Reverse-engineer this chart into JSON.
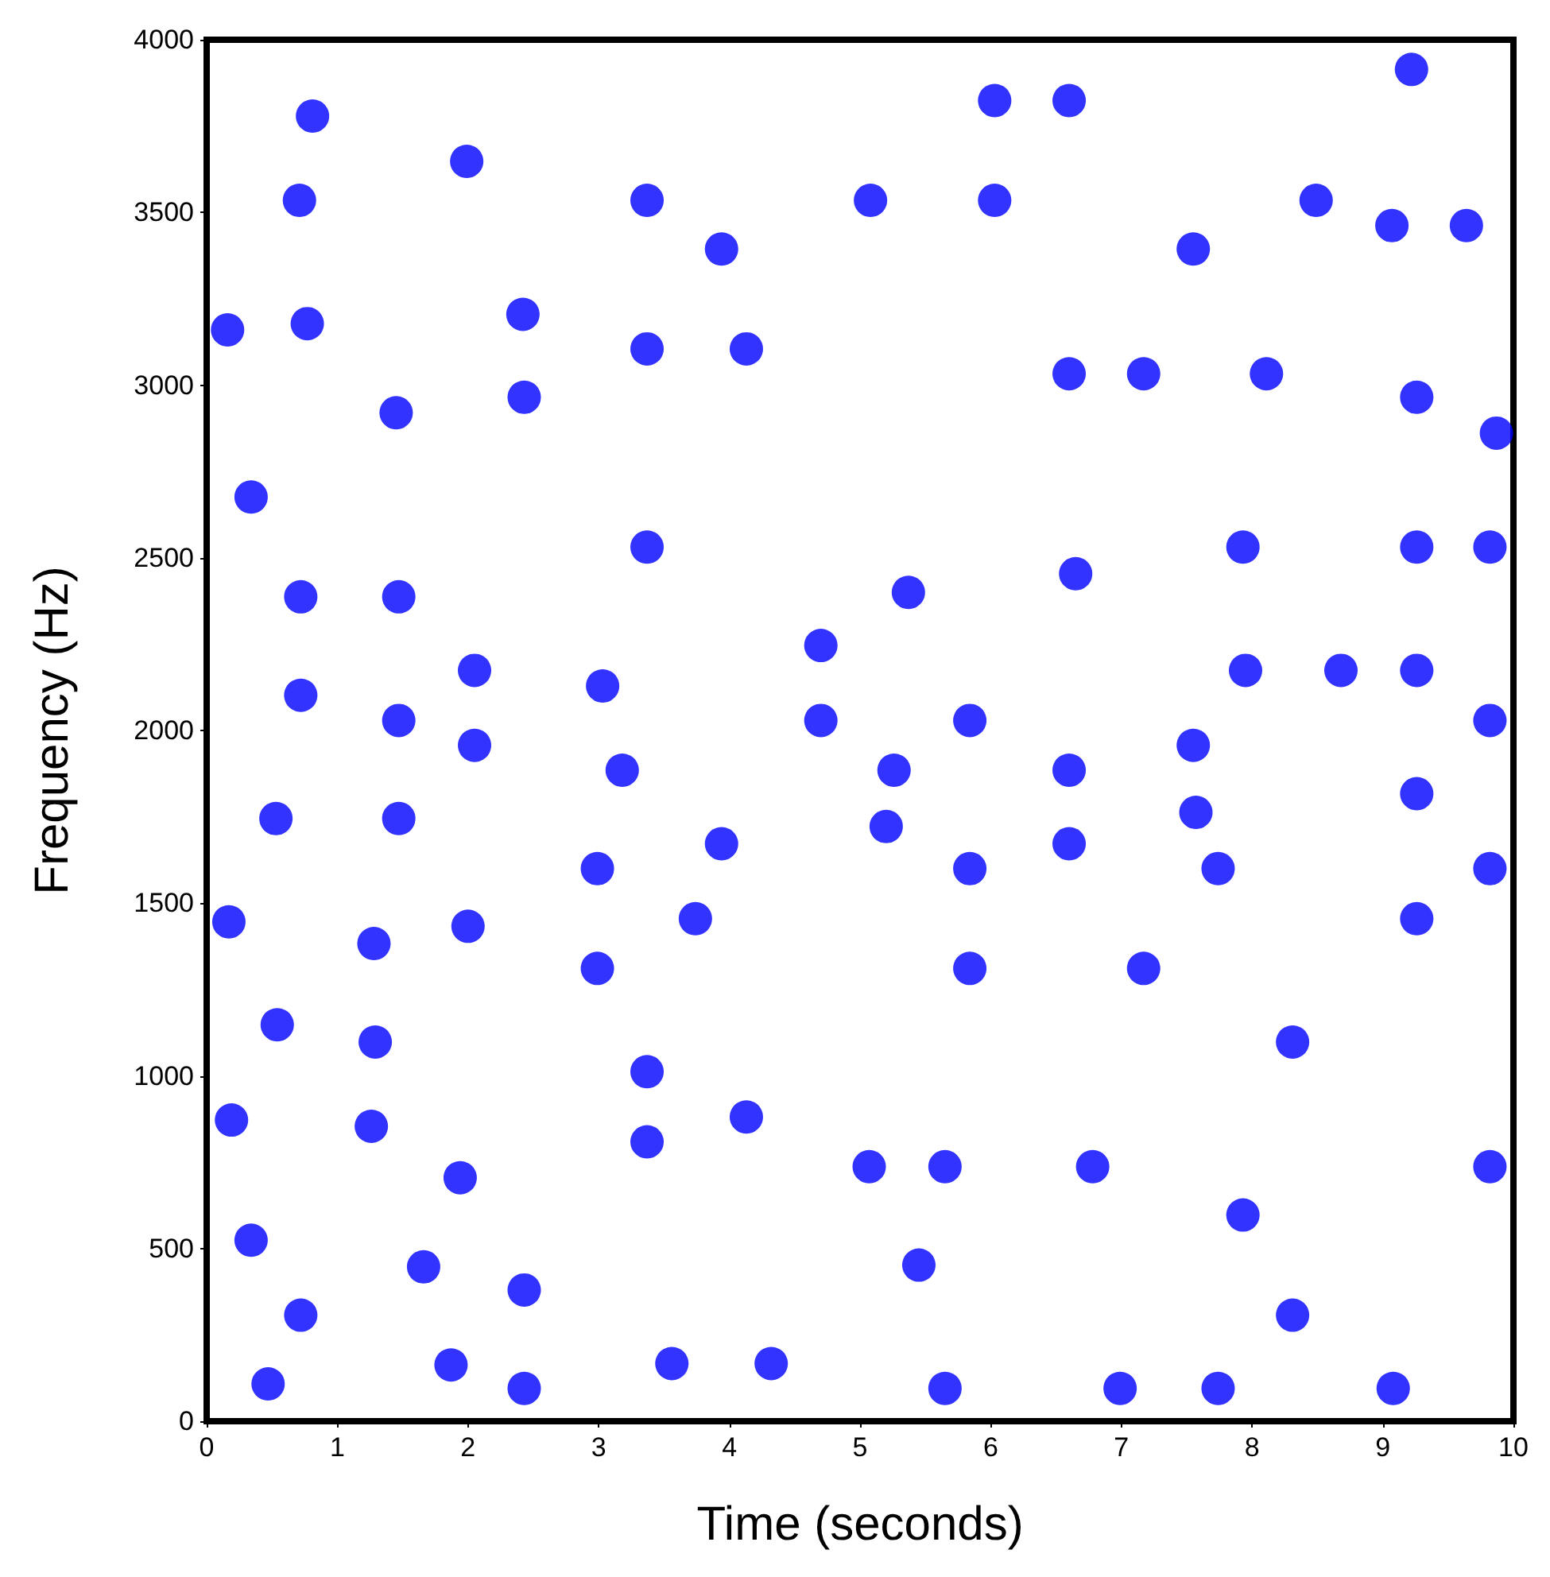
{
  "chart_data": {
    "type": "scatter",
    "xlabel": "Time (seconds)",
    "ylabel": "Frequency (Hz)",
    "color": "#0000ff",
    "marker": "circle",
    "xlim": [
      0,
      10
    ],
    "ylim": [
      0,
      4000
    ],
    "xticks": [
      0,
      1,
      2,
      3,
      4,
      5,
      6,
      7,
      8,
      9,
      10
    ],
    "yticks": [
      0,
      500,
      1000,
      1500,
      2000,
      2500,
      3000,
      3500,
      4000
    ],
    "x": [
      0.16,
      0.17,
      0.19,
      0.34,
      0.34,
      0.47,
      0.53,
      0.54,
      0.71,
      0.72,
      0.72,
      0.72,
      0.77,
      0.81,
      1.28,
      1.29,
      1.26,
      1.45,
      1.47,
      1.47,
      1.47,
      1.66,
      1.87,
      1.94,
      1.99,
      2.0,
      2.05,
      2.05,
      2.42,
      2.43,
      2.43,
      2.43,
      3.03,
      2.99,
      2.99,
      3.18,
      3.37,
      3.37,
      3.37,
      3.37,
      3.37,
      3.56,
      3.74,
      3.94,
      3.94,
      4.13,
      4.13,
      4.32,
      4.7,
      4.7,
      5.07,
      5.08,
      5.2,
      5.26,
      5.37,
      5.45,
      5.65,
      5.65,
      5.84,
      5.84,
      5.84,
      6.03,
      6.03,
      6.6,
      6.6,
      6.6,
      6.6,
      6.65,
      6.78,
      6.99,
      7.17,
      7.17,
      7.55,
      7.55,
      7.57,
      7.74,
      7.74,
      7.93,
      7.93,
      7.95,
      8.11,
      8.31,
      8.31,
      8.49,
      8.68,
      9.07,
      9.08,
      9.22,
      9.26,
      9.26,
      9.26,
      9.26,
      9.26,
      9.64,
      9.87,
      9.82,
      9.82,
      9.82,
      9.82
    ],
    "values": [
      3160,
      1446,
      872,
      2676,
      524,
      108,
      1745,
      1148,
      3535,
      2387,
      2102,
      307,
      3178,
      3779,
      1383,
      1098,
      854,
      2920,
      2387,
      2029,
      1745,
      447,
      163,
      705,
      3648,
      1433,
      2174,
      1957,
      3205,
      2965,
      380,
      95,
      2129,
      1600,
      1311,
      1885,
      3535,
      3105,
      2531,
      1012,
      809,
      167,
      1455,
      3394,
      1672,
      3105,
      881,
      167,
      2246,
      2029,
      737,
      3535,
      1722,
      1885,
      2400,
      452,
      737,
      95,
      2029,
      1600,
      1311,
      3824,
      3535,
      3824,
      3033,
      1885,
      1672,
      2454,
      737,
      95,
      3033,
      1311,
      3394,
      1957,
      1763,
      1600,
      95,
      2531,
      597,
      2174,
      3033,
      1098,
      307,
      3535,
      2174,
      3462,
      95,
      3914,
      2965,
      2531,
      2174,
      1817,
      1455,
      3462,
      2861,
      2531,
      2029,
      1600,
      737
    ]
  }
}
